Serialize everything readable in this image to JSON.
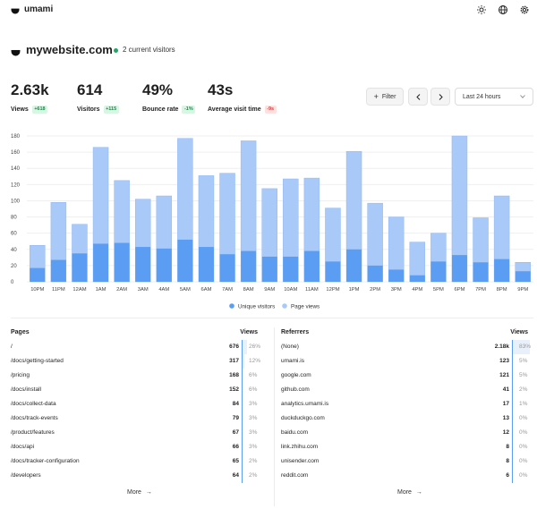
{
  "app": {
    "name": "umami"
  },
  "website": {
    "name": "mywebsite.com",
    "live": "2 current visitors"
  },
  "metrics": [
    {
      "value": "2.63k",
      "label": "Views",
      "change": "+618",
      "trend": "pos"
    },
    {
      "value": "614",
      "label": "Visitors",
      "change": "+115",
      "trend": "pos"
    },
    {
      "value": "49%",
      "label": "Bounce rate",
      "change": "-1%",
      "trend": "pos"
    },
    {
      "value": "43s",
      "label": "Average visit time",
      "change": "-9s",
      "trend": "neg"
    }
  ],
  "controls": {
    "filter": "Filter",
    "range": "Last 24 hours"
  },
  "colors": {
    "unique": "#5b9df3",
    "views": "#a9c9f8",
    "positive": "#1c8a4e",
    "negative": "#d43d3d"
  },
  "chart_data": {
    "type": "bar",
    "categories": [
      "10PM",
      "11PM",
      "12AM",
      "1AM",
      "2AM",
      "3AM",
      "4AM",
      "5AM",
      "6AM",
      "7AM",
      "8AM",
      "9AM",
      "10AM",
      "11AM",
      "12PM",
      "1PM",
      "2PM",
      "3PM",
      "4PM",
      "5PM",
      "6PM",
      "7PM",
      "8PM",
      "9PM"
    ],
    "series": [
      {
        "name": "Unique visitors",
        "values": [
          17,
          27,
          35,
          47,
          48,
          43,
          41,
          52,
          43,
          34,
          38,
          31,
          31,
          38,
          25,
          40,
          20,
          15,
          8,
          25,
          33,
          24,
          28,
          13
        ]
      },
      {
        "name": "Page views",
        "values": [
          45,
          98,
          71,
          166,
          125,
          102,
          106,
          177,
          131,
          134,
          174,
          115,
          127,
          128,
          91,
          161,
          97,
          80,
          49,
          60,
          180,
          79,
          106,
          24
        ]
      }
    ],
    "yticks": [
      0,
      20,
      40,
      60,
      80,
      100,
      120,
      140,
      160,
      180
    ],
    "ylim": [
      0,
      180
    ],
    "legend": "bottom",
    "grid": true
  },
  "pages": {
    "title": "Pages",
    "col": "Views",
    "more": "More",
    "rows": [
      {
        "label": "/",
        "value": "676",
        "pct": "26%",
        "share": 26
      },
      {
        "label": "/docs/getting-started",
        "value": "317",
        "pct": "12%",
        "share": 12
      },
      {
        "label": "/pricing",
        "value": "168",
        "pct": "6%",
        "share": 6
      },
      {
        "label": "/docs/install",
        "value": "152",
        "pct": "6%",
        "share": 6
      },
      {
        "label": "/docs/collect-data",
        "value": "84",
        "pct": "3%",
        "share": 3
      },
      {
        "label": "/docs/track-events",
        "value": "79",
        "pct": "3%",
        "share": 3
      },
      {
        "label": "/product/features",
        "value": "67",
        "pct": "3%",
        "share": 3
      },
      {
        "label": "/docs/api",
        "value": "66",
        "pct": "3%",
        "share": 3
      },
      {
        "label": "/docs/tracker-configuration",
        "value": "65",
        "pct": "2%",
        "share": 2
      },
      {
        "label": "/developers",
        "value": "64",
        "pct": "2%",
        "share": 2
      }
    ]
  },
  "referrers": {
    "title": "Referrers",
    "col": "Views",
    "more": "More",
    "rows": [
      {
        "label": "(None)",
        "value": "2.18k",
        "pct": "83%",
        "share": 83
      },
      {
        "label": "umami.is",
        "value": "123",
        "pct": "5%",
        "share": 5
      },
      {
        "label": "google.com",
        "value": "121",
        "pct": "5%",
        "share": 5
      },
      {
        "label": "github.com",
        "value": "41",
        "pct": "2%",
        "share": 2
      },
      {
        "label": "analytics.umami.is",
        "value": "17",
        "pct": "1%",
        "share": 1
      },
      {
        "label": "duckduckgo.com",
        "value": "13",
        "pct": "0%",
        "share": 0
      },
      {
        "label": "baidu.com",
        "value": "12",
        "pct": "0%",
        "share": 0
      },
      {
        "label": "link.zhihu.com",
        "value": "8",
        "pct": "0%",
        "share": 0
      },
      {
        "label": "unisender.com",
        "value": "8",
        "pct": "0%",
        "share": 0
      },
      {
        "label": "reddit.com",
        "value": "6",
        "pct": "0%",
        "share": 0
      }
    ]
  }
}
